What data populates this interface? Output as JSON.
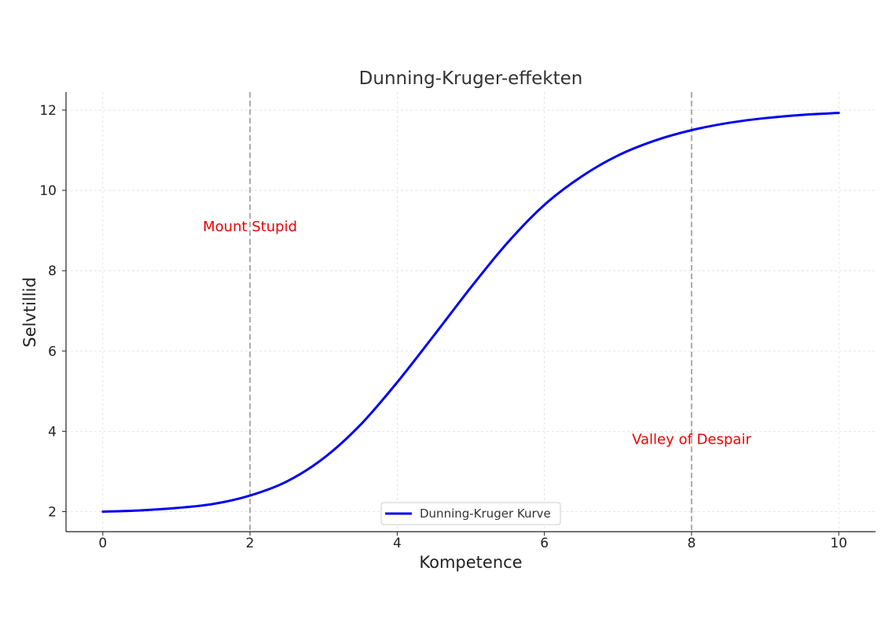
{
  "chart_data": {
    "type": "line",
    "title": "Dunning-Kruger-effekten",
    "xlabel": "Kompetence",
    "ylabel": "Selvtillid",
    "xlim": [
      -0.5,
      10.5
    ],
    "ylim": [
      1.5,
      12.45
    ],
    "xticks": [
      0,
      2,
      4,
      6,
      8,
      10
    ],
    "yticks": [
      2,
      4,
      6,
      8,
      10,
      12
    ],
    "grid": true,
    "legend_position": "bottom-center",
    "series": [
      {
        "name": "Dunning-Kruger Kurve",
        "color": "#0000ee",
        "x": [
          0,
          0.5,
          1,
          1.5,
          2,
          2.5,
          3,
          3.5,
          4,
          4.5,
          5,
          5.5,
          6,
          6.5,
          7,
          7.5,
          8,
          8.5,
          9,
          9.5,
          10
        ],
        "y": [
          2.0,
          2.03,
          2.09,
          2.19,
          2.4,
          2.75,
          3.33,
          4.16,
          5.22,
          6.39,
          7.58,
          8.7,
          9.64,
          10.34,
          10.87,
          11.24,
          11.5,
          11.68,
          11.8,
          11.88,
          11.93
        ]
      }
    ],
    "vlines": [
      {
        "x": 2,
        "color": "#aaaaaa",
        "style": "dashed"
      },
      {
        "x": 8,
        "color": "#aaaaaa",
        "style": "dashed"
      }
    ],
    "annotations": [
      {
        "text": "Mount Stupid",
        "x": 2,
        "y": 9.1,
        "color": "#ee0000"
      },
      {
        "text": "Valley of Despair",
        "x": 8,
        "y": 3.8,
        "color": "#ee0000"
      }
    ]
  }
}
